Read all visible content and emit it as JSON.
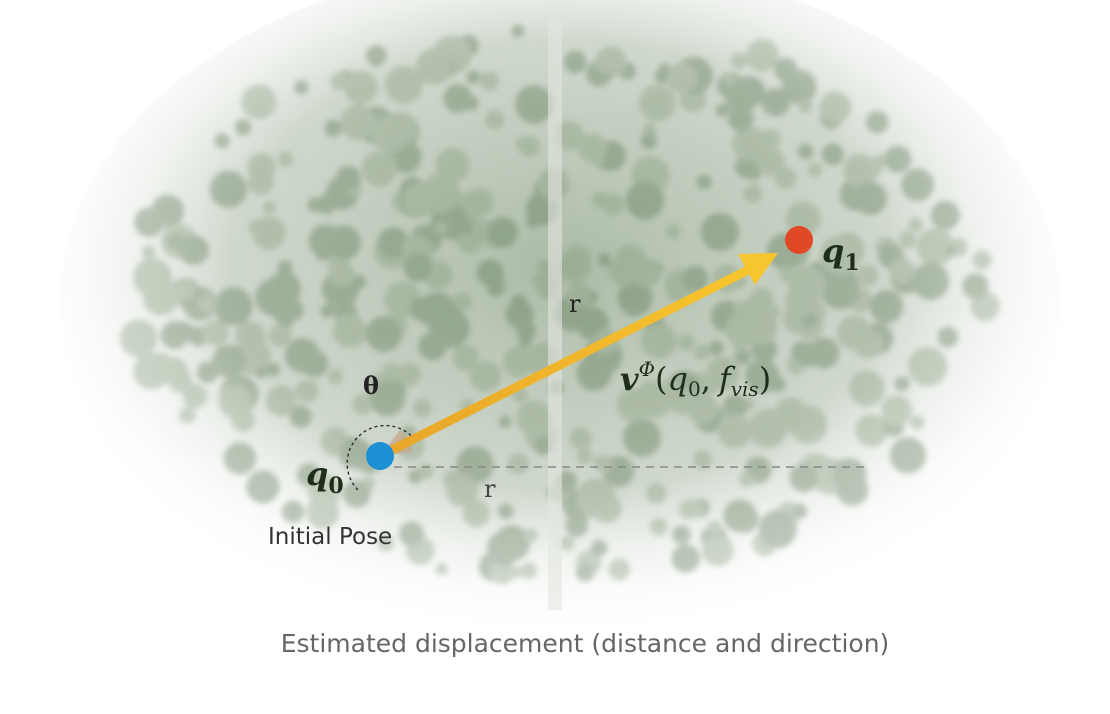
{
  "labels": {
    "theta": "θ",
    "r_top": "r",
    "r_bottom": "r",
    "q0": {
      "base": "q",
      "sub": "0"
    },
    "q1": {
      "base": "q",
      "sub": "1"
    },
    "vector": {
      "v": "v",
      "sup": "Φ",
      "open": "(",
      "q": "q",
      "q_sub": "0",
      "comma": ",",
      "f": "f",
      "f_sub": "vis",
      "close": ")"
    },
    "initial_pose": "Initial Pose"
  },
  "caption": "Estimated displacement (distance and direction)"
}
